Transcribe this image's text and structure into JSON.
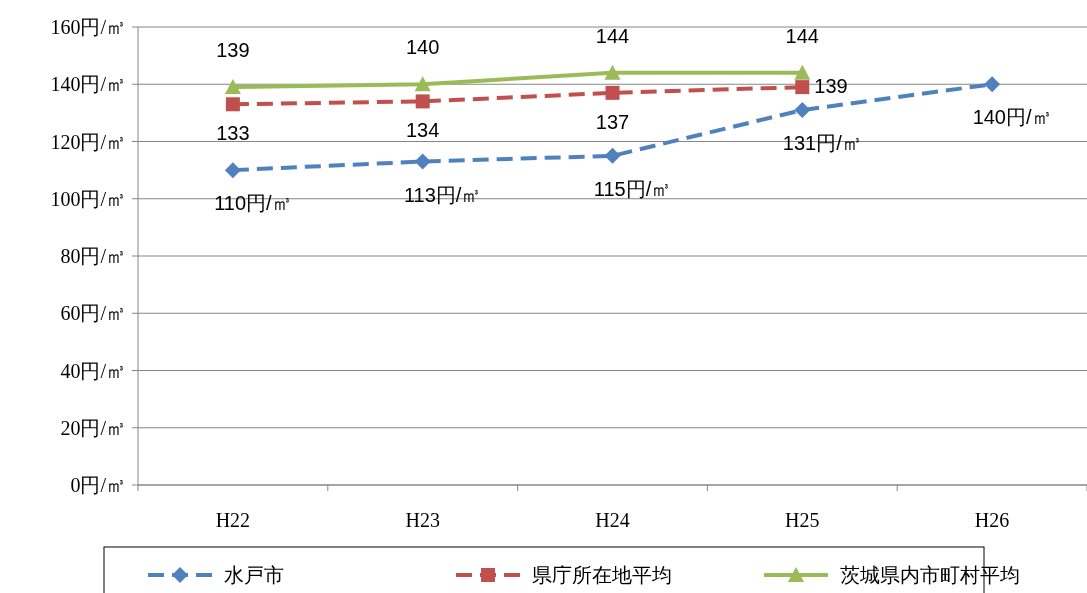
{
  "chart_data": {
    "type": "line",
    "categories": [
      "H22",
      "H23",
      "H24",
      "H25",
      "H26"
    ],
    "ylim": [
      0,
      160
    ],
    "yticks": [
      {
        "value": 0,
        "label": "0円/㎥"
      },
      {
        "value": 20,
        "label": "20円/㎥"
      },
      {
        "value": 40,
        "label": "40円/㎥"
      },
      {
        "value": 60,
        "label": "60円/㎥"
      },
      {
        "value": 80,
        "label": "80円/㎥"
      },
      {
        "value": 100,
        "label": "100円/㎥"
      },
      {
        "value": 120,
        "label": "120円/㎥"
      },
      {
        "value": 140,
        "label": "140円/㎥"
      },
      {
        "value": 160,
        "label": "160円/㎥"
      }
    ],
    "grid": "y",
    "legend": "bottom",
    "series": [
      {
        "name": "水戸市",
        "color": "#4f81bd",
        "marker": "diamond",
        "line_style": "dashed",
        "values": [
          110,
          113,
          115,
          131,
          140
        ],
        "value_labels": [
          "110円/㎥",
          "113円/㎥",
          "115円/㎥",
          "131円/㎥",
          "140円/㎥"
        ]
      },
      {
        "name": "県庁所在地平均",
        "color": "#c0504d",
        "marker": "square",
        "line_style": "dashed",
        "values": [
          133,
          134,
          137,
          139,
          null
        ],
        "value_labels": [
          "133",
          "134",
          "137",
          "139",
          null
        ]
      },
      {
        "name": "茨城県内市町村平均",
        "color": "#9bbb59",
        "marker": "triangle",
        "line_style": "solid",
        "values": [
          139,
          140,
          144,
          144,
          null
        ],
        "value_labels": [
          "139",
          "140",
          "144",
          "144",
          null
        ]
      }
    ]
  }
}
